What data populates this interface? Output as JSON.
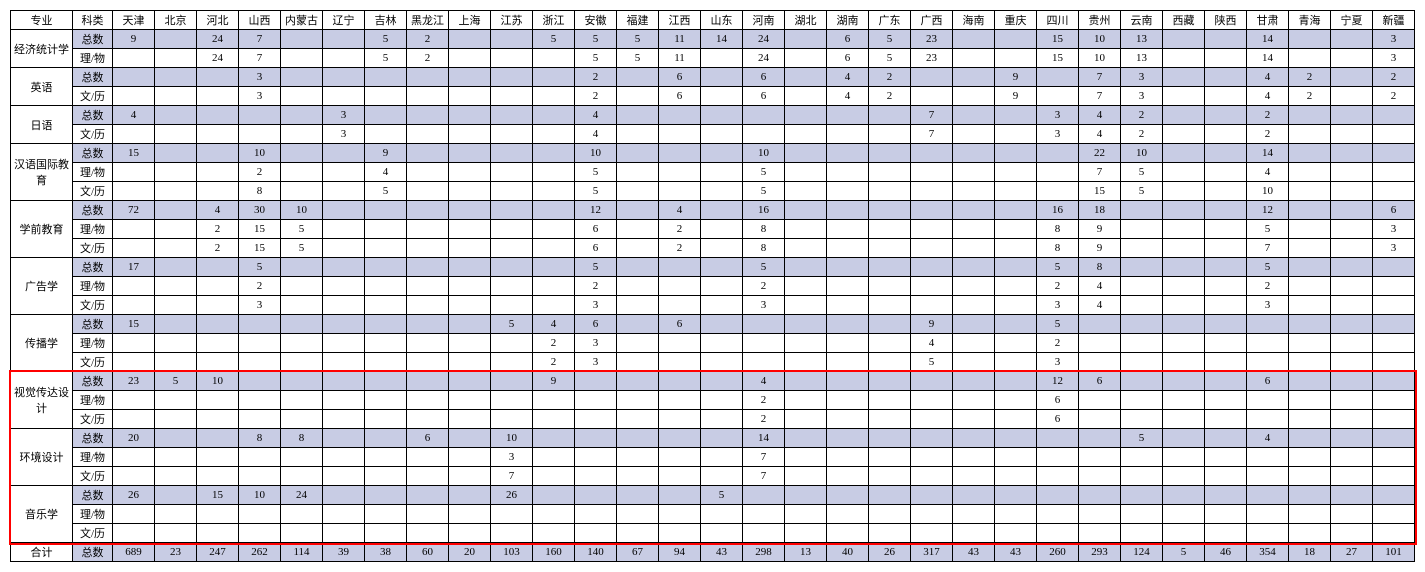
{
  "headers": {
    "major": "专业",
    "type": "科类",
    "provinces": [
      "天津",
      "北京",
      "河北",
      "山西",
      "内蒙古",
      "辽宁",
      "吉林",
      "黑龙江",
      "上海",
      "江苏",
      "浙江",
      "安徽",
      "福建",
      "江西",
      "山东",
      "河南",
      "湖北",
      "湖南",
      "广东",
      "广西",
      "海南",
      "重庆",
      "四川",
      "贵州",
      "云南",
      "西藏",
      "陕西",
      "甘肃",
      "青海",
      "宁夏",
      "新疆"
    ]
  },
  "rowTypes": {
    "total": "总数",
    "sci": "理/物",
    "art": "文/历"
  },
  "colors": {
    "shade": "#c8cce4",
    "border": "#000000",
    "highlight": "#ff0000",
    "bg": "#ffffff"
  },
  "majors": [
    {
      "name": "经济统计学",
      "rows": [
        {
          "type": "total",
          "shade": true,
          "v": [
            "9",
            "",
            "24",
            "7",
            "",
            "",
            "5",
            "2",
            "",
            "",
            "5",
            "5",
            "5",
            "11",
            "14",
            "24",
            "",
            "6",
            "5",
            "23",
            "",
            "",
            "15",
            "10",
            "13",
            "",
            "",
            "14",
            "",
            "",
            "3"
          ]
        },
        {
          "type": "sci",
          "shade": false,
          "v": [
            "",
            "",
            "24",
            "7",
            "",
            "",
            "5",
            "2",
            "",
            "",
            "",
            "5",
            "5",
            "11",
            "",
            "24",
            "",
            "6",
            "5",
            "23",
            "",
            "",
            "15",
            "10",
            "13",
            "",
            "",
            "14",
            "",
            "",
            "3"
          ]
        }
      ]
    },
    {
      "name": "英语",
      "rows": [
        {
          "type": "total",
          "shade": true,
          "v": [
            "",
            "",
            "",
            "3",
            "",
            "",
            "",
            "",
            "",
            "",
            "",
            "2",
            "",
            "6",
            "",
            "6",
            "",
            "4",
            "2",
            "",
            "",
            "9",
            "",
            "7",
            "3",
            "",
            "",
            "4",
            "2",
            "",
            "2"
          ]
        },
        {
          "type": "art",
          "shade": false,
          "v": [
            "",
            "",
            "",
            "3",
            "",
            "",
            "",
            "",
            "",
            "",
            "",
            "2",
            "",
            "6",
            "",
            "6",
            "",
            "4",
            "2",
            "",
            "",
            "9",
            "",
            "7",
            "3",
            "",
            "",
            "4",
            "2",
            "",
            "2"
          ]
        }
      ]
    },
    {
      "name": "日语",
      "rows": [
        {
          "type": "total",
          "shade": true,
          "v": [
            "4",
            "",
            "",
            "",
            "",
            "3",
            "",
            "",
            "",
            "",
            "",
            "4",
            "",
            "",
            "",
            "",
            "",
            "",
            "",
            "7",
            "",
            "",
            "3",
            "4",
            "2",
            "",
            "",
            "2",
            "",
            "",
            ""
          ]
        },
        {
          "type": "art",
          "shade": false,
          "v": [
            "",
            "",
            "",
            "",
            "",
            "3",
            "",
            "",
            "",
            "",
            "",
            "4",
            "",
            "",
            "",
            "",
            "",
            "",
            "",
            "7",
            "",
            "",
            "3",
            "4",
            "2",
            "",
            "",
            "2",
            "",
            "",
            ""
          ]
        }
      ]
    },
    {
      "name": "汉语国际教育",
      "rows": [
        {
          "type": "total",
          "shade": true,
          "v": [
            "15",
            "",
            "",
            "10",
            "",
            "",
            "9",
            "",
            "",
            "",
            "",
            "10",
            "",
            "",
            "",
            "10",
            "",
            "",
            "",
            "",
            "",
            "",
            "",
            "22",
            "10",
            "",
            "",
            "14",
            "",
            "",
            ""
          ]
        },
        {
          "type": "sci",
          "shade": false,
          "v": [
            "",
            "",
            "",
            "2",
            "",
            "",
            "4",
            "",
            "",
            "",
            "",
            "5",
            "",
            "",
            "",
            "5",
            "",
            "",
            "",
            "",
            "",
            "",
            "",
            "7",
            "5",
            "",
            "",
            "4",
            "",
            "",
            ""
          ]
        },
        {
          "type": "art",
          "shade": false,
          "v": [
            "",
            "",
            "",
            "8",
            "",
            "",
            "5",
            "",
            "",
            "",
            "",
            "5",
            "",
            "",
            "",
            "5",
            "",
            "",
            "",
            "",
            "",
            "",
            "",
            "15",
            "5",
            "",
            "",
            "10",
            "",
            "",
            ""
          ]
        }
      ]
    },
    {
      "name": "学前教育",
      "rows": [
        {
          "type": "total",
          "shade": true,
          "v": [
            "72",
            "",
            "4",
            "30",
            "10",
            "",
            "",
            "",
            "",
            "",
            "",
            "12",
            "",
            "4",
            "",
            "16",
            "",
            "",
            "",
            "",
            "",
            "",
            "16",
            "18",
            "",
            "",
            "",
            "12",
            "",
            "",
            "6"
          ]
        },
        {
          "type": "sci",
          "shade": false,
          "v": [
            "",
            "",
            "2",
            "15",
            "5",
            "",
            "",
            "",
            "",
            "",
            "",
            "6",
            "",
            "2",
            "",
            "8",
            "",
            "",
            "",
            "",
            "",
            "",
            "8",
            "9",
            "",
            "",
            "",
            "5",
            "",
            "",
            "3"
          ]
        },
        {
          "type": "art",
          "shade": false,
          "v": [
            "",
            "",
            "2",
            "15",
            "5",
            "",
            "",
            "",
            "",
            "",
            "",
            "6",
            "",
            "2",
            "",
            "8",
            "",
            "",
            "",
            "",
            "",
            "",
            "8",
            "9",
            "",
            "",
            "",
            "7",
            "",
            "",
            "3"
          ]
        }
      ]
    },
    {
      "name": "广告学",
      "rows": [
        {
          "type": "total",
          "shade": true,
          "v": [
            "17",
            "",
            "",
            "5",
            "",
            "",
            "",
            "",
            "",
            "",
            "",
            "5",
            "",
            "",
            "",
            "5",
            "",
            "",
            "",
            "",
            "",
            "",
            "5",
            "8",
            "",
            "",
            "",
            "5",
            "",
            "",
            ""
          ]
        },
        {
          "type": "sci",
          "shade": false,
          "v": [
            "",
            "",
            "",
            "2",
            "",
            "",
            "",
            "",
            "",
            "",
            "",
            "2",
            "",
            "",
            "",
            "2",
            "",
            "",
            "",
            "",
            "",
            "",
            "2",
            "4",
            "",
            "",
            "",
            "2",
            "",
            "",
            ""
          ]
        },
        {
          "type": "art",
          "shade": false,
          "v": [
            "",
            "",
            "",
            "3",
            "",
            "",
            "",
            "",
            "",
            "",
            "",
            "3",
            "",
            "",
            "",
            "3",
            "",
            "",
            "",
            "",
            "",
            "",
            "3",
            "4",
            "",
            "",
            "",
            "3",
            "",
            "",
            ""
          ]
        }
      ]
    },
    {
      "name": "传播学",
      "rows": [
        {
          "type": "total",
          "shade": true,
          "v": [
            "15",
            "",
            "",
            "",
            "",
            "",
            "",
            "",
            "",
            "5",
            "4",
            "6",
            "",
            "6",
            "",
            "",
            "",
            "",
            "",
            "9",
            "",
            "",
            "5",
            "",
            "",
            "",
            "",
            "",
            "",
            "",
            ""
          ]
        },
        {
          "type": "sci",
          "shade": false,
          "v": [
            "",
            "",
            "",
            "",
            "",
            "",
            "",
            "",
            "",
            "",
            "2",
            "3",
            "",
            "",
            "",
            "",
            "",
            "",
            "",
            "4",
            "",
            "",
            "2",
            "",
            "",
            "",
            "",
            "",
            "",
            "",
            ""
          ]
        },
        {
          "type": "art",
          "shade": false,
          "v": [
            "",
            "",
            "",
            "",
            "",
            "",
            "",
            "",
            "",
            "",
            "2",
            "3",
            "",
            "",
            "",
            "",
            "",
            "",
            "",
            "5",
            "",
            "",
            "3",
            "",
            "",
            "",
            "",
            "",
            "",
            "",
            ""
          ]
        }
      ]
    },
    {
      "name": "视觉传达设计",
      "rows": [
        {
          "type": "total",
          "shade": true,
          "v": [
            "23",
            "5",
            "10",
            "",
            "",
            "",
            "",
            "",
            "",
            "",
            "9",
            "",
            "",
            "",
            "",
            "4",
            "",
            "",
            "",
            "",
            "",
            "",
            "12",
            "6",
            "",
            "",
            "",
            "6",
            "",
            "",
            ""
          ]
        },
        {
          "type": "sci",
          "shade": false,
          "v": [
            "",
            "",
            "",
            "",
            "",
            "",
            "",
            "",
            "",
            "",
            "",
            "",
            "",
            "",
            "",
            "2",
            "",
            "",
            "",
            "",
            "",
            "",
            "6",
            "",
            "",
            "",
            "",
            "",
            "",
            "",
            ""
          ]
        },
        {
          "type": "art",
          "shade": false,
          "v": [
            "",
            "",
            "",
            "",
            "",
            "",
            "",
            "",
            "",
            "",
            "",
            "",
            "",
            "",
            "",
            "2",
            "",
            "",
            "",
            "",
            "",
            "",
            "6",
            "",
            "",
            "",
            "",
            "",
            "",
            "",
            ""
          ]
        }
      ]
    },
    {
      "name": "环境设计",
      "rows": [
        {
          "type": "total",
          "shade": true,
          "v": [
            "20",
            "",
            "",
            "8",
            "8",
            "",
            "",
            "6",
            "",
            "10",
            "",
            "",
            "",
            "",
            "",
            "14",
            "",
            "",
            "",
            "",
            "",
            "",
            "",
            "",
            "5",
            "",
            "",
            "4",
            "",
            "",
            ""
          ]
        },
        {
          "type": "sci",
          "shade": false,
          "v": [
            "",
            "",
            "",
            "",
            "",
            "",
            "",
            "",
            "",
            "3",
            "",
            "",
            "",
            "",
            "",
            "7",
            "",
            "",
            "",
            "",
            "",
            "",
            "",
            "",
            "",
            "",
            "",
            "",
            "",
            "",
            ""
          ]
        },
        {
          "type": "art",
          "shade": false,
          "v": [
            "",
            "",
            "",
            "",
            "",
            "",
            "",
            "",
            "",
            "7",
            "",
            "",
            "",
            "",
            "",
            "7",
            "",
            "",
            "",
            "",
            "",
            "",
            "",
            "",
            "",
            "",
            "",
            "",
            "",
            "",
            ""
          ]
        }
      ]
    },
    {
      "name": "音乐学",
      "rows": [
        {
          "type": "total",
          "shade": true,
          "v": [
            "26",
            "",
            "15",
            "10",
            "24",
            "",
            "",
            "",
            "",
            "26",
            "",
            "",
            "",
            "",
            "5",
            "",
            "",
            "",
            "",
            "",
            "",
            "",
            "",
            "",
            "",
            "",
            "",
            "",
            "",
            "",
            ""
          ]
        },
        {
          "type": "sci",
          "shade": false,
          "v": [
            "",
            "",
            "",
            "",
            "",
            "",
            "",
            "",
            "",
            "",
            "",
            "",
            "",
            "",
            "",
            "",
            "",
            "",
            "",
            "",
            "",
            "",
            "",
            "",
            "",
            "",
            "",
            "",
            "",
            "",
            ""
          ]
        },
        {
          "type": "art",
          "shade": false,
          "v": [
            "",
            "",
            "",
            "",
            "",
            "",
            "",
            "",
            "",
            "",
            "",
            "",
            "",
            "",
            "",
            "",
            "",
            "",
            "",
            "",
            "",
            "",
            "",
            "",
            "",
            "",
            "",
            "",
            "",
            "",
            ""
          ]
        }
      ]
    }
  ],
  "totals": {
    "label": "合计",
    "type": "total",
    "shade": true,
    "v": [
      "689",
      "23",
      "247",
      "262",
      "114",
      "39",
      "38",
      "60",
      "20",
      "103",
      "160",
      "140",
      "67",
      "94",
      "43",
      "298",
      "13",
      "40",
      "26",
      "317",
      "43",
      "43",
      "260",
      "293",
      "124",
      "5",
      "46",
      "354",
      "18",
      "27",
      "101"
    ]
  },
  "highlight": {
    "startMajorIndex": 7,
    "endMajorIndex": 9
  }
}
